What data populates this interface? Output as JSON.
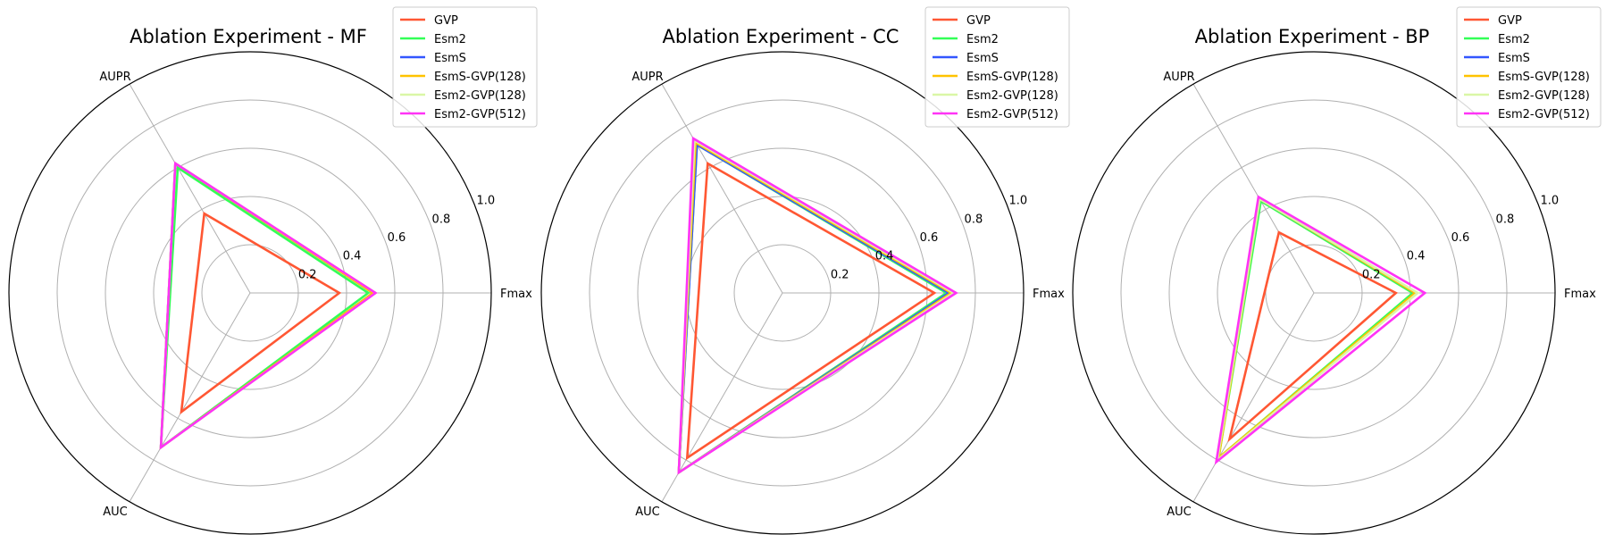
{
  "chart_data": [
    {
      "type": "radar",
      "title": "Ablation Experiment - MF",
      "axes": [
        "Fmax",
        "AUPR",
        "AUC"
      ],
      "rlim": [
        0,
        1.0
      ],
      "rticks": [
        "0.2",
        "0.4",
        "0.6",
        "0.8",
        "1.0"
      ],
      "grid": true,
      "legend_position": "top-right",
      "series": [
        {
          "name": "GVP",
          "color": "#ff5733",
          "values": [
            0.37,
            0.38,
            0.57
          ]
        },
        {
          "name": "Esm2",
          "color": "#33ff57",
          "values": [
            0.49,
            0.6,
            0.74
          ]
        },
        {
          "name": "EsmS",
          "color": "#3357ff",
          "values": [
            0.51,
            0.62,
            0.74
          ]
        },
        {
          "name": "EsmS-GVP(128)",
          "color": "#ffc300",
          "values": [
            0.51,
            0.62,
            0.74
          ]
        },
        {
          "name": "Esm2-GVP(128)",
          "color": "#daf7a6",
          "values": [
            0.52,
            0.62,
            0.74
          ]
        },
        {
          "name": "Esm2-GVP(512)",
          "color": "#ff33f6",
          "values": [
            0.52,
            0.62,
            0.74
          ]
        }
      ]
    },
    {
      "type": "radar",
      "title": "Ablation Experiment - CC",
      "axes": [
        "Fmax",
        "AUPR",
        "AUC"
      ],
      "rlim": [
        0,
        1.0
      ],
      "rticks": [
        "0.2",
        "0.4",
        "0.6",
        "0.8",
        "1.0"
      ],
      "grid": true,
      "legend_position": "top-right",
      "series": [
        {
          "name": "GVP",
          "color": "#ff5733",
          "values": [
            0.63,
            0.62,
            0.79
          ]
        },
        {
          "name": "Esm2",
          "color": "#33ff57",
          "values": [
            0.68,
            0.71,
            0.86
          ]
        },
        {
          "name": "EsmS",
          "color": "#3357ff",
          "values": [
            0.69,
            0.71,
            0.86
          ]
        },
        {
          "name": "EsmS-GVP(128)",
          "color": "#ffc300",
          "values": [
            0.7,
            0.72,
            0.86
          ]
        },
        {
          "name": "Esm2-GVP(128)",
          "color": "#daf7a6",
          "values": [
            0.71,
            0.73,
            0.86
          ]
        },
        {
          "name": "Esm2-GVP(512)",
          "color": "#ff33f6",
          "values": [
            0.72,
            0.74,
            0.86
          ]
        }
      ]
    },
    {
      "type": "radar",
      "title": "Ablation Experiment - BP",
      "axes": [
        "Fmax",
        "AUPR",
        "AUC"
      ],
      "rlim": [
        0,
        1.0
      ],
      "rticks": [
        "0.2",
        "0.4",
        "0.6",
        "0.8",
        "1.0"
      ],
      "grid": true,
      "legend_position": "top-right",
      "series": [
        {
          "name": "GVP",
          "color": "#ff5733",
          "values": [
            0.34,
            0.29,
            0.7
          ]
        },
        {
          "name": "Esm2",
          "color": "#33ff57",
          "values": [
            0.41,
            0.44,
            0.79
          ]
        },
        {
          "name": "EsmS",
          "color": "#3357ff",
          "values": [
            0.42,
            0.45,
            0.8
          ]
        },
        {
          "name": "EsmS-GVP(128)",
          "color": "#ffc300",
          "values": [
            0.42,
            0.45,
            0.79
          ]
        },
        {
          "name": "Esm2-GVP(128)",
          "color": "#daf7a6",
          "values": [
            0.43,
            0.45,
            0.8
          ]
        },
        {
          "name": "Esm2-GVP(512)",
          "color": "#ff33f6",
          "values": [
            0.46,
            0.46,
            0.81
          ]
        }
      ]
    }
  ]
}
